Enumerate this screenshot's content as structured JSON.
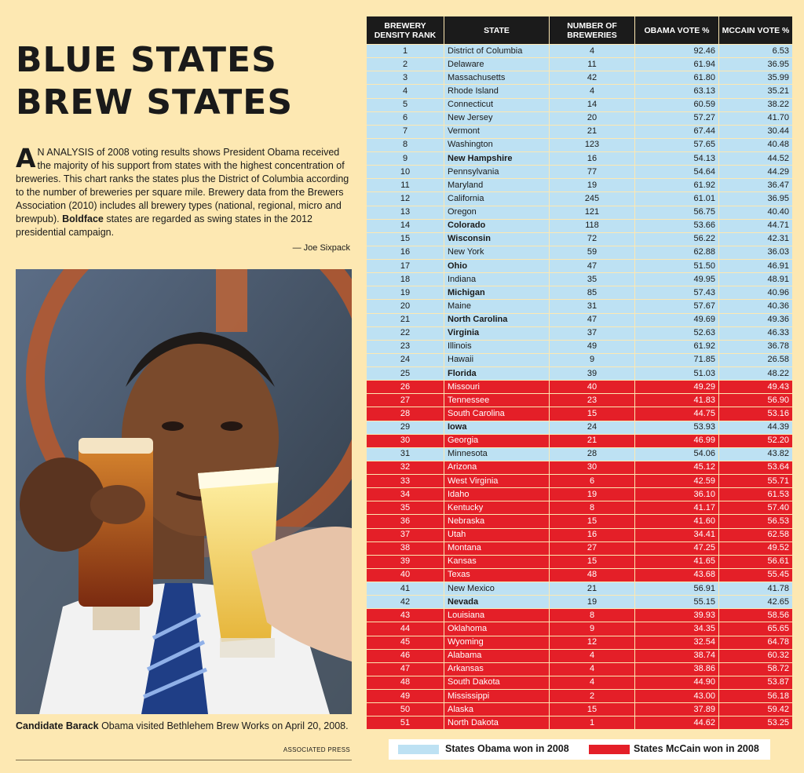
{
  "headline": [
    "BLUE STATES",
    "BREW STATES"
  ],
  "intro": {
    "dropcap": "A",
    "text": "N ANALYSIS of 2008 voting results shows President Obama received the majority of his support from states with the highest concentration of breweries. This chart ranks the states plus the District of Columbia according to the number of breweries per square mile. Brewery data from the Brewers Association (2010) includes all brewery types (national, regional, micro and brewpub). ",
    "bold": "Boldface",
    "tail": " states are regarded as swing states in the 2012 presidential campaign."
  },
  "byline": "— Joe Sixpack",
  "caption": {
    "bold": "Candidate Barack",
    "text": " Obama visited Bethlehem Brew Works on  April 20, 2008."
  },
  "credit": "ASSOCIATED PRESS",
  "colors": {
    "obama": "#bde1f3",
    "mccain": "#e41f28",
    "header": "#1b1b1b",
    "page": "#fde8b2"
  },
  "table": {
    "headers": [
      "BREWERY DENSITY RANK",
      "STATE",
      "NUMBER OF BREWERIES",
      "OBAMA VOTE %",
      "MCCAIN VOTE %"
    ],
    "rows": [
      {
        "rank": "1",
        "state": "District of Columbia",
        "breweries": "4",
        "obama": "92.46",
        "mccain": "6.53",
        "won": "o",
        "swing": false
      },
      {
        "rank": "2",
        "state": "Delaware",
        "breweries": "11",
        "obama": "61.94",
        "mccain": "36.95",
        "won": "o",
        "swing": false
      },
      {
        "rank": "3",
        "state": "Massachusetts",
        "breweries": "42",
        "obama": "61.80",
        "mccain": "35.99",
        "won": "o",
        "swing": false
      },
      {
        "rank": "4",
        "state": "Rhode Island",
        "breweries": "4",
        "obama": "63.13",
        "mccain": "35.21",
        "won": "o",
        "swing": false
      },
      {
        "rank": "5",
        "state": "Connecticut",
        "breweries": "14",
        "obama": "60.59",
        "mccain": "38.22",
        "won": "o",
        "swing": false
      },
      {
        "rank": "6",
        "state": "New Jersey",
        "breweries": "20",
        "obama": "57.27",
        "mccain": "41.70",
        "won": "o",
        "swing": false
      },
      {
        "rank": "7",
        "state": "Vermont",
        "breweries": "21",
        "obama": "67.44",
        "mccain": "30.44",
        "won": "o",
        "swing": false
      },
      {
        "rank": "8",
        "state": "Washington",
        "breweries": "123",
        "obama": "57.65",
        "mccain": "40.48",
        "won": "o",
        "swing": false
      },
      {
        "rank": "9",
        "state": "New Hampshire",
        "breweries": "16",
        "obama": "54.13",
        "mccain": "44.52",
        "won": "o",
        "swing": true
      },
      {
        "rank": "10",
        "state": "Pennsylvania",
        "breweries": "77",
        "obama": "54.64",
        "mccain": "44.29",
        "won": "o",
        "swing": false
      },
      {
        "rank": "11",
        "state": "Maryland",
        "breweries": "19",
        "obama": "61.92",
        "mccain": "36.47",
        "won": "o",
        "swing": false
      },
      {
        "rank": "12",
        "state": "California",
        "breweries": "245",
        "obama": "61.01",
        "mccain": "36.95",
        "won": "o",
        "swing": false
      },
      {
        "rank": "13",
        "state": "Oregon",
        "breweries": "121",
        "obama": "56.75",
        "mccain": "40.40",
        "won": "o",
        "swing": false
      },
      {
        "rank": "14",
        "state": "Colorado",
        "breweries": "118",
        "obama": "53.66",
        "mccain": "44.71",
        "won": "o",
        "swing": true
      },
      {
        "rank": "15",
        "state": "Wisconsin",
        "breweries": "72",
        "obama": "56.22",
        "mccain": "42.31",
        "won": "o",
        "swing": true
      },
      {
        "rank": "16",
        "state": "New York",
        "breweries": "59",
        "obama": "62.88",
        "mccain": "36.03",
        "won": "o",
        "swing": false
      },
      {
        "rank": "17",
        "state": "Ohio",
        "breweries": "47",
        "obama": "51.50",
        "mccain": "46.91",
        "won": "o",
        "swing": true
      },
      {
        "rank": "18",
        "state": "Indiana",
        "breweries": "35",
        "obama": "49.95",
        "mccain": "48.91",
        "won": "o",
        "swing": false
      },
      {
        "rank": "19",
        "state": "Michigan",
        "breweries": "85",
        "obama": "57.43",
        "mccain": "40.96",
        "won": "o",
        "swing": true
      },
      {
        "rank": "20",
        "state": "Maine",
        "breweries": "31",
        "obama": "57.67",
        "mccain": "40.36",
        "won": "o",
        "swing": false
      },
      {
        "rank": "21",
        "state": "North Carolina",
        "breweries": "47",
        "obama": "49.69",
        "mccain": "49.36",
        "won": "o",
        "swing": true
      },
      {
        "rank": "22",
        "state": "Virginia",
        "breweries": "37",
        "obama": "52.63",
        "mccain": "46.33",
        "won": "o",
        "swing": true
      },
      {
        "rank": "23",
        "state": "Illinois",
        "breweries": "49",
        "obama": "61.92",
        "mccain": "36.78",
        "won": "o",
        "swing": false
      },
      {
        "rank": "24",
        "state": "Hawaii",
        "breweries": "9",
        "obama": "71.85",
        "mccain": "26.58",
        "won": "o",
        "swing": false
      },
      {
        "rank": "25",
        "state": "Florida",
        "breweries": "39",
        "obama": "51.03",
        "mccain": "48.22",
        "won": "o",
        "swing": true
      },
      {
        "rank": "26",
        "state": "Missouri",
        "breweries": "40",
        "obama": "49.29",
        "mccain": "49.43",
        "won": "m",
        "swing": false
      },
      {
        "rank": "27",
        "state": "Tennessee",
        "breweries": "23",
        "obama": "41.83",
        "mccain": "56.90",
        "won": "m",
        "swing": false
      },
      {
        "rank": "28",
        "state": "South Carolina",
        "breweries": "15",
        "obama": "44.75",
        "mccain": "53.16",
        "won": "m",
        "swing": false
      },
      {
        "rank": "29",
        "state": "Iowa",
        "breweries": "24",
        "obama": "53.93",
        "mccain": "44.39",
        "won": "o",
        "swing": true
      },
      {
        "rank": "30",
        "state": "Georgia",
        "breweries": "21",
        "obama": "46.99",
        "mccain": "52.20",
        "won": "m",
        "swing": false
      },
      {
        "rank": "31",
        "state": "Minnesota",
        "breweries": "28",
        "obama": "54.06",
        "mccain": "43.82",
        "won": "o",
        "swing": false
      },
      {
        "rank": "32",
        "state": "Arizona",
        "breweries": "30",
        "obama": "45.12",
        "mccain": "53.64",
        "won": "m",
        "swing": false
      },
      {
        "rank": "33",
        "state": "West Virginia",
        "breweries": "6",
        "obama": "42.59",
        "mccain": "55.71",
        "won": "m",
        "swing": false
      },
      {
        "rank": "34",
        "state": "Idaho",
        "breweries": "19",
        "obama": "36.10",
        "mccain": "61.53",
        "won": "m",
        "swing": false
      },
      {
        "rank": "35",
        "state": "Kentucky",
        "breweries": "8",
        "obama": "41.17",
        "mccain": "57.40",
        "won": "m",
        "swing": false
      },
      {
        "rank": "36",
        "state": "Nebraska",
        "breweries": "15",
        "obama": "41.60",
        "mccain": "56.53",
        "won": "m",
        "swing": false
      },
      {
        "rank": "37",
        "state": "Utah",
        "breweries": "16",
        "obama": "34.41",
        "mccain": "62.58",
        "won": "m",
        "swing": false
      },
      {
        "rank": "38",
        "state": "Montana",
        "breweries": "27",
        "obama": "47.25",
        "mccain": "49.52",
        "won": "m",
        "swing": false
      },
      {
        "rank": "39",
        "state": "Kansas",
        "breweries": "15",
        "obama": "41.65",
        "mccain": "56.61",
        "won": "m",
        "swing": false
      },
      {
        "rank": "40",
        "state": "Texas",
        "breweries": "48",
        "obama": "43.68",
        "mccain": "55.45",
        "won": "m",
        "swing": false
      },
      {
        "rank": "41",
        "state": "New Mexico",
        "breweries": "21",
        "obama": "56.91",
        "mccain": "41.78",
        "won": "o",
        "swing": false
      },
      {
        "rank": "42",
        "state": "Nevada",
        "breweries": "19",
        "obama": "55.15",
        "mccain": "42.65",
        "won": "o",
        "swing": true
      },
      {
        "rank": "43",
        "state": "Louisiana",
        "breweries": "8",
        "obama": "39.93",
        "mccain": "58.56",
        "won": "m",
        "swing": false
      },
      {
        "rank": "44",
        "state": "Oklahoma",
        "breweries": "9",
        "obama": "34.35",
        "mccain": "65.65",
        "won": "m",
        "swing": false
      },
      {
        "rank": "45",
        "state": "Wyoming",
        "breweries": "12",
        "obama": "32.54",
        "mccain": "64.78",
        "won": "m",
        "swing": false
      },
      {
        "rank": "46",
        "state": "Alabama",
        "breweries": "4",
        "obama": "38.74",
        "mccain": "60.32",
        "won": "m",
        "swing": false
      },
      {
        "rank": "47",
        "state": "Arkansas",
        "breweries": "4",
        "obama": "38.86",
        "mccain": "58.72",
        "won": "m",
        "swing": false
      },
      {
        "rank": "48",
        "state": "South Dakota",
        "breweries": "4",
        "obama": "44.90",
        "mccain": "53.87",
        "won": "m",
        "swing": false
      },
      {
        "rank": "49",
        "state": "Mississippi",
        "breweries": "2",
        "obama": "43.00",
        "mccain": "56.18",
        "won": "m",
        "swing": false
      },
      {
        "rank": "50",
        "state": "Alaska",
        "breweries": "15",
        "obama": "37.89",
        "mccain": "59.42",
        "won": "m",
        "swing": false
      },
      {
        "rank": "51",
        "state": "North Dakota",
        "breweries": "1",
        "obama": "44.62",
        "mccain": "53.25",
        "won": "m",
        "swing": false
      }
    ]
  },
  "legend": {
    "obama_label": "States Obama won in 2008",
    "mccain_label": "States McCain won in 2008"
  }
}
